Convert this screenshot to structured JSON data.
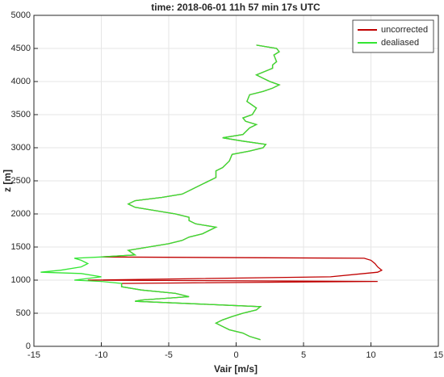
{
  "chart_data": {
    "type": "line",
    "title": "time: 2018-06-01 11h 57 min 17s UTC",
    "x_label": "Vair [m/s]",
    "y_label": "z [m]",
    "xlim": [
      -15,
      15
    ],
    "xticks": [
      -15,
      -10,
      -5,
      0,
      5,
      10,
      15
    ],
    "ylim": [
      0,
      5000
    ],
    "yticks": [
      0,
      500,
      1000,
      1500,
      2000,
      2500,
      3000,
      3500,
      4000,
      4500,
      5000
    ],
    "grid": true,
    "legend": "top-right",
    "y": [
      100,
      150,
      200,
      250,
      300,
      350,
      400,
      450,
      500,
      550,
      600,
      620,
      650,
      680,
      700,
      750,
      800,
      850,
      900,
      950,
      980,
      1000,
      1050,
      1100,
      1120,
      1150,
      1200,
      1250,
      1300,
      1330,
      1350,
      1380,
      1450,
      1500,
      1550,
      1600,
      1650,
      1700,
      1750,
      1800,
      1850,
      1900,
      1950,
      2000,
      2050,
      2100,
      2150,
      2200,
      2250,
      2300,
      2350,
      2400,
      2450,
      2500,
      2550,
      2600,
      2650,
      2700,
      2800,
      2900,
      2950,
      3000,
      3050,
      3100,
      3150,
      3200,
      3300,
      3350,
      3400,
      3450,
      3500,
      3600,
      3700,
      3800,
      3850,
      3900,
      3950,
      4000,
      4050,
      4100,
      4200,
      4250,
      4300,
      4400,
      4450,
      4500,
      4550
    ],
    "series": [
      {
        "name": "uncorrected",
        "color": "#c00000",
        "values": [
          1.8,
          1.0,
          0.5,
          -0.5,
          -1,
          -1.5,
          -1.0,
          -0.3,
          0.5,
          1.5,
          1.8,
          -0.5,
          -4,
          -7.5,
          -7,
          -3.5,
          -4.5,
          -7,
          -8.5,
          -8.5,
          10.5,
          -11,
          7,
          9.5,
          10.5,
          10.8,
          10.5,
          10.3,
          10,
          9.5,
          -10,
          -7.5,
          -8,
          -6.5,
          -5,
          -4,
          -3.5,
          -2.5,
          -2,
          -1.5,
          -3,
          -3.5,
          -3.5,
          -4.5,
          -6,
          -7.5,
          -8,
          -7.5,
          -5.5,
          -4,
          -3.5,
          -3,
          -2.5,
          -2,
          -1.5,
          -1.5,
          -1.5,
          -1,
          -0.5,
          -0.3,
          1,
          2,
          2.2,
          0.5,
          -1,
          0.5,
          1,
          1.5,
          0.7,
          0.5,
          1.2,
          1.5,
          0.8,
          1.0,
          2,
          2.7,
          3.2,
          2.5,
          2,
          1.5,
          2.7,
          2.7,
          3,
          2.8,
          3.2,
          3.0,
          1.5
        ]
      },
      {
        "name": "dealiased",
        "color": "#33e633",
        "values": [
          1.8,
          1.0,
          0.5,
          -0.5,
          -1,
          -1.5,
          -1.0,
          -0.3,
          0.5,
          1.5,
          1.8,
          -0.5,
          -4,
          -7.5,
          -7,
          -3.5,
          -4.5,
          -7,
          -8.5,
          -8.5,
          -10,
          -12,
          -10,
          -11.5,
          -14.5,
          -13,
          -11.5,
          -11,
          -11.5,
          -12,
          -10,
          -7.5,
          -8,
          -6.5,
          -5,
          -4,
          -3.5,
          -2.5,
          -2,
          -1.5,
          -3,
          -3.5,
          -3.5,
          -4.5,
          -6,
          -7.5,
          -8,
          -7.5,
          -5.5,
          -4,
          -3.5,
          -3,
          -2.5,
          -2,
          -1.5,
          -1.5,
          -1.5,
          -1,
          -0.5,
          -0.3,
          1,
          2,
          2.2,
          0.5,
          -1,
          0.5,
          1,
          1.5,
          0.7,
          0.5,
          1.2,
          1.5,
          0.8,
          1.0,
          2,
          2.7,
          3.2,
          2.5,
          2,
          1.5,
          2.7,
          2.7,
          3,
          2.8,
          3.2,
          3.0,
          1.5
        ]
      }
    ]
  }
}
